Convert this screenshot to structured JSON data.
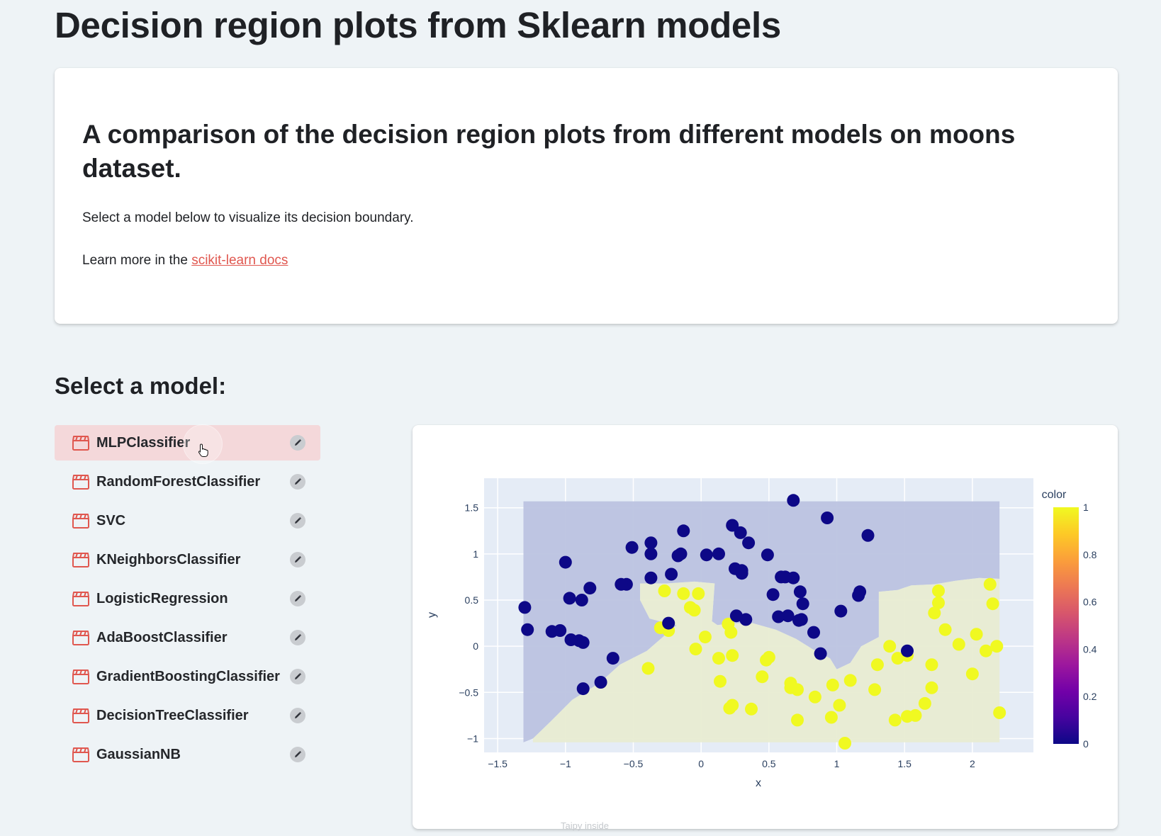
{
  "page": {
    "title": "Decision region plots from Sklearn models"
  },
  "intro": {
    "heading": "A comparison of the decision region plots from different models on moons dataset.",
    "description": "Select a model below to visualize its decision boundary.",
    "learn_prefix": "Learn more in the ",
    "link_text": "scikit-learn docs"
  },
  "selector": {
    "heading": "Select a model:",
    "selected": "MLPClassifier",
    "models": [
      "MLPClassifier",
      "RandomForestClassifier",
      "SVC",
      "KNeighborsClassifier",
      "LogisticRegression",
      "AdaBoostClassifier",
      "GradientBoostingClassifier",
      "DecisionTreeClassifier",
      "GaussianNB"
    ]
  },
  "colors": {
    "accent": "#e0574f",
    "selected_bg": "#f4d8da",
    "class0_point": "#0d0887",
    "class1_point": "#f0f921",
    "region0": "#bcc3e0",
    "region1": "#e8ecd2",
    "plot_bg": "#e5ecf6"
  },
  "icons": {
    "model_icon": "clapperboard-icon",
    "edit_icon": "pencil-icon"
  },
  "footer": "Taipy inside",
  "chart_data": {
    "type": "scatter",
    "title": "",
    "xlabel": "x",
    "ylabel": "y",
    "xlim": [
      -1.6,
      2.45
    ],
    "ylim": [
      -1.15,
      1.82
    ],
    "xticks": [
      -1.5,
      -1,
      -0.5,
      0,
      0.5,
      1,
      1.5,
      2
    ],
    "yticks": [
      -1,
      -0.5,
      0,
      0.5,
      1,
      1.5
    ],
    "xtick_labels": [
      "−1.5",
      "−1",
      "−0.5",
      "0",
      "0.5",
      "1",
      "1.5",
      "2"
    ],
    "ytick_labels": [
      "−1",
      "−0.5",
      "0",
      "0.5",
      "1",
      "1.5"
    ],
    "grid": true,
    "colorbar": {
      "title": "color",
      "ticks": [
        0,
        0.2,
        0.4,
        0.6,
        0.8,
        1
      ],
      "tick_labels": [
        "0",
        "0.2",
        "0.4",
        "0.6",
        "0.8",
        "1"
      ],
      "colorscale": [
        "#0d0887",
        "#46039f",
        "#7201a8",
        "#9c179e",
        "#bd3786",
        "#d8576b",
        "#ed7953",
        "#fb9f3a",
        "#fdca26",
        "#f0f921"
      ]
    },
    "regions": [
      {
        "class": 0,
        "polygon": [
          [
            -1.31,
            1.57
          ],
          [
            2.2,
            1.57
          ],
          [
            2.2,
            0.73
          ],
          [
            2.05,
            0.74
          ],
          [
            1.88,
            0.71
          ],
          [
            1.72,
            0.67
          ],
          [
            1.55,
            0.66
          ],
          [
            1.45,
            0.61
          ],
          [
            1.31,
            0.59
          ],
          [
            1.31,
            0.1
          ],
          [
            1.18,
            0.0
          ],
          [
            1.1,
            -0.18
          ],
          [
            1.0,
            -0.25
          ],
          [
            0.95,
            -0.13
          ],
          [
            0.82,
            -0.03
          ],
          [
            0.7,
            0.08
          ],
          [
            0.55,
            0.18
          ],
          [
            0.38,
            0.25
          ],
          [
            0.25,
            0.25
          ],
          [
            0.12,
            0.23
          ],
          [
            0.08,
            0.27
          ],
          [
            0.1,
            0.68
          ],
          [
            -0.05,
            0.7
          ],
          [
            -0.25,
            0.68
          ],
          [
            -0.45,
            0.68
          ],
          [
            -0.45,
            0.5
          ],
          [
            -0.38,
            0.3
          ],
          [
            -0.25,
            0.25
          ],
          [
            -0.18,
            0.23
          ],
          [
            -0.4,
            -0.05
          ],
          [
            -0.6,
            -0.2
          ],
          [
            -0.75,
            -0.4
          ],
          [
            -0.95,
            -0.58
          ],
          [
            -1.12,
            -0.83
          ],
          [
            -1.24,
            -1.0
          ],
          [
            -1.31,
            -1.04
          ]
        ]
      },
      {
        "class": 1,
        "polygon": [
          [
            -1.24,
            -1.0
          ],
          [
            -1.12,
            -0.83
          ],
          [
            -0.95,
            -0.58
          ],
          [
            -0.75,
            -0.4
          ],
          [
            -0.6,
            -0.2
          ],
          [
            -0.4,
            -0.05
          ],
          [
            -0.18,
            0.23
          ],
          [
            -0.25,
            0.25
          ],
          [
            -0.38,
            0.3
          ],
          [
            -0.45,
            0.5
          ],
          [
            -0.45,
            0.68
          ],
          [
            -0.25,
            0.68
          ],
          [
            -0.05,
            0.7
          ],
          [
            0.1,
            0.68
          ],
          [
            0.08,
            0.27
          ],
          [
            0.12,
            0.23
          ],
          [
            0.25,
            0.25
          ],
          [
            0.38,
            0.25
          ],
          [
            0.55,
            0.18
          ],
          [
            0.7,
            0.08
          ],
          [
            0.82,
            -0.03
          ],
          [
            0.95,
            -0.13
          ],
          [
            1.0,
            -0.25
          ],
          [
            1.1,
            -0.18
          ],
          [
            1.18,
            0.0
          ],
          [
            1.31,
            0.1
          ],
          [
            1.31,
            0.59
          ],
          [
            1.45,
            0.61
          ],
          [
            1.55,
            0.66
          ],
          [
            1.72,
            0.67
          ],
          [
            1.88,
            0.71
          ],
          [
            2.05,
            0.74
          ],
          [
            2.2,
            0.73
          ],
          [
            2.2,
            -1.04
          ],
          [
            -1.24,
            -1.04
          ]
        ]
      }
    ],
    "series": [
      {
        "name": "0",
        "color_value": 0,
        "x": [
          0.68,
          0.93,
          1.23,
          -1.3,
          -1.28,
          -1.0,
          -0.97,
          -0.9,
          -0.87,
          -0.87,
          -0.82,
          -0.88,
          -0.65,
          -0.55,
          -0.59,
          -0.51,
          -0.37,
          -0.37,
          -0.37,
          -0.24,
          -0.22,
          -0.15,
          -0.17,
          -0.13,
          0.04,
          0.13,
          0.23,
          0.29,
          0.35,
          0.25,
          0.3,
          0.3,
          0.53,
          0.64,
          0.68,
          0.49,
          0.59,
          0.62,
          0.73,
          0.75,
          0.72,
          0.74,
          0.83,
          0.88,
          1.03,
          1.16,
          1.17,
          0.33,
          1.52,
          -1.1,
          -1.04,
          -0.96,
          -0.74,
          0.26,
          0.57
        ],
        "y": [
          1.58,
          1.39,
          1.2,
          0.42,
          0.18,
          0.91,
          0.52,
          0.06,
          0.04,
          -0.46,
          0.63,
          0.5,
          -0.13,
          0.67,
          0.67,
          1.07,
          1.12,
          1.0,
          0.74,
          0.25,
          0.78,
          1.0,
          0.98,
          1.25,
          0.99,
          1.0,
          1.31,
          1.23,
          1.12,
          0.84,
          0.82,
          0.79,
          0.56,
          0.33,
          0.74,
          0.99,
          0.75,
          0.75,
          0.59,
          0.46,
          0.28,
          0.29,
          0.15,
          -0.08,
          0.38,
          0.55,
          0.59,
          0.29,
          -0.05,
          0.16,
          0.17,
          0.07,
          -0.39,
          0.33,
          0.32
        ]
      },
      {
        "name": "1",
        "color_value": 1,
        "x": [
          -0.27,
          -0.13,
          -0.02,
          -0.05,
          -0.08,
          -0.24,
          -0.3,
          0.03,
          0.2,
          0.22,
          0.23,
          0.21,
          0.14,
          0.23,
          0.37,
          0.45,
          0.48,
          0.5,
          0.66,
          0.66,
          0.71,
          0.71,
          0.84,
          0.97,
          0.96,
          1.02,
          1.06,
          1.1,
          1.28,
          1.3,
          1.39,
          1.45,
          1.52,
          1.52,
          1.7,
          1.72,
          1.75,
          1.75,
          1.8,
          1.9,
          2.0,
          2.03,
          2.1,
          2.13,
          2.15,
          2.2,
          2.18,
          1.7,
          1.65,
          1.58,
          1.43,
          -0.39,
          -0.04,
          0.13
        ],
        "y": [
          0.6,
          0.57,
          0.57,
          0.39,
          0.42,
          0.17,
          0.2,
          0.1,
          0.24,
          0.15,
          -0.1,
          -0.67,
          -0.38,
          -0.64,
          -0.68,
          -0.33,
          -0.15,
          -0.12,
          -0.4,
          -0.45,
          -0.47,
          -0.8,
          -0.55,
          -0.42,
          -0.77,
          -0.64,
          -1.05,
          -0.37,
          -0.47,
          -0.2,
          0.0,
          -0.13,
          -0.1,
          -0.76,
          -0.2,
          0.36,
          0.47,
          0.6,
          0.18,
          0.02,
          -0.3,
          0.13,
          -0.05,
          0.67,
          0.46,
          -0.72,
          0.0,
          -0.45,
          -0.62,
          -0.75,
          -0.8,
          -0.24,
          -0.03,
          -0.13
        ]
      }
    ]
  }
}
